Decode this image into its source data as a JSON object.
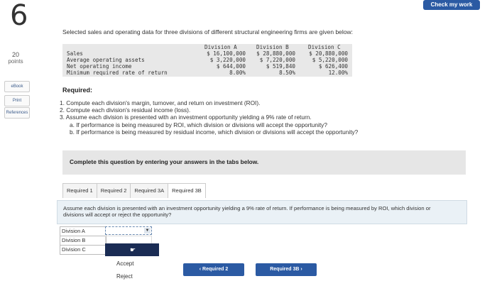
{
  "question": {
    "number": "6",
    "points": "20",
    "points_label": "points"
  },
  "sidebar": {
    "ebook": "eBook",
    "print": "Print",
    "references": "References"
  },
  "header": {
    "check_label": "Check my work"
  },
  "intro": "Selected sales and operating data for three divisions of different structural engineering firms are given below:",
  "table": {
    "headers": [
      "Division A",
      "Division B",
      "Division C"
    ],
    "rows": [
      {
        "label": "Sales",
        "values": [
          "$ 16,100,000",
          "$ 28,880,000",
          "$ 20,880,000"
        ]
      },
      {
        "label": "Average operating assets",
        "values": [
          "$ 3,220,000",
          "$ 7,220,000",
          "$ 5,220,000"
        ]
      },
      {
        "label": "Net operating income",
        "values": [
          "$ 644,000",
          "$ 519,840",
          "$ 626,400"
        ]
      },
      {
        "label": "Minimum required rate of return",
        "values": [
          "8.00%",
          "8.50%",
          "12.00%"
        ]
      }
    ]
  },
  "required": {
    "heading": "Required:",
    "items": [
      "1. Compute each division's margin, turnover, and return on investment (ROI).",
      "2. Compute each division's residual income (loss).",
      "3. Assume each division is presented with an investment opportunity yielding a 9% rate of return.",
      "a. If performance is being measured by ROI, which division or divisions will accept the opportunity?",
      "b. If performance is being measured by residual income, which division or divisions will accept the opportunity?"
    ]
  },
  "banner": "Complete this question by entering your answers in the tabs below.",
  "tabs": [
    "Required 1",
    "Required 2",
    "Required 3A",
    "Required 3B"
  ],
  "panel_text": "Assume each division is presented with an investment opportunity yielding a 9% rate of return. If performance is being measured by ROI, which division or divisions will accept or reject the opportunity?",
  "divisions": [
    "Division A",
    "Division B",
    "Division C"
  ],
  "options": [
    "Accept",
    "Reject"
  ],
  "nav": {
    "prev": "Required 2",
    "next": "Required 3B"
  }
}
